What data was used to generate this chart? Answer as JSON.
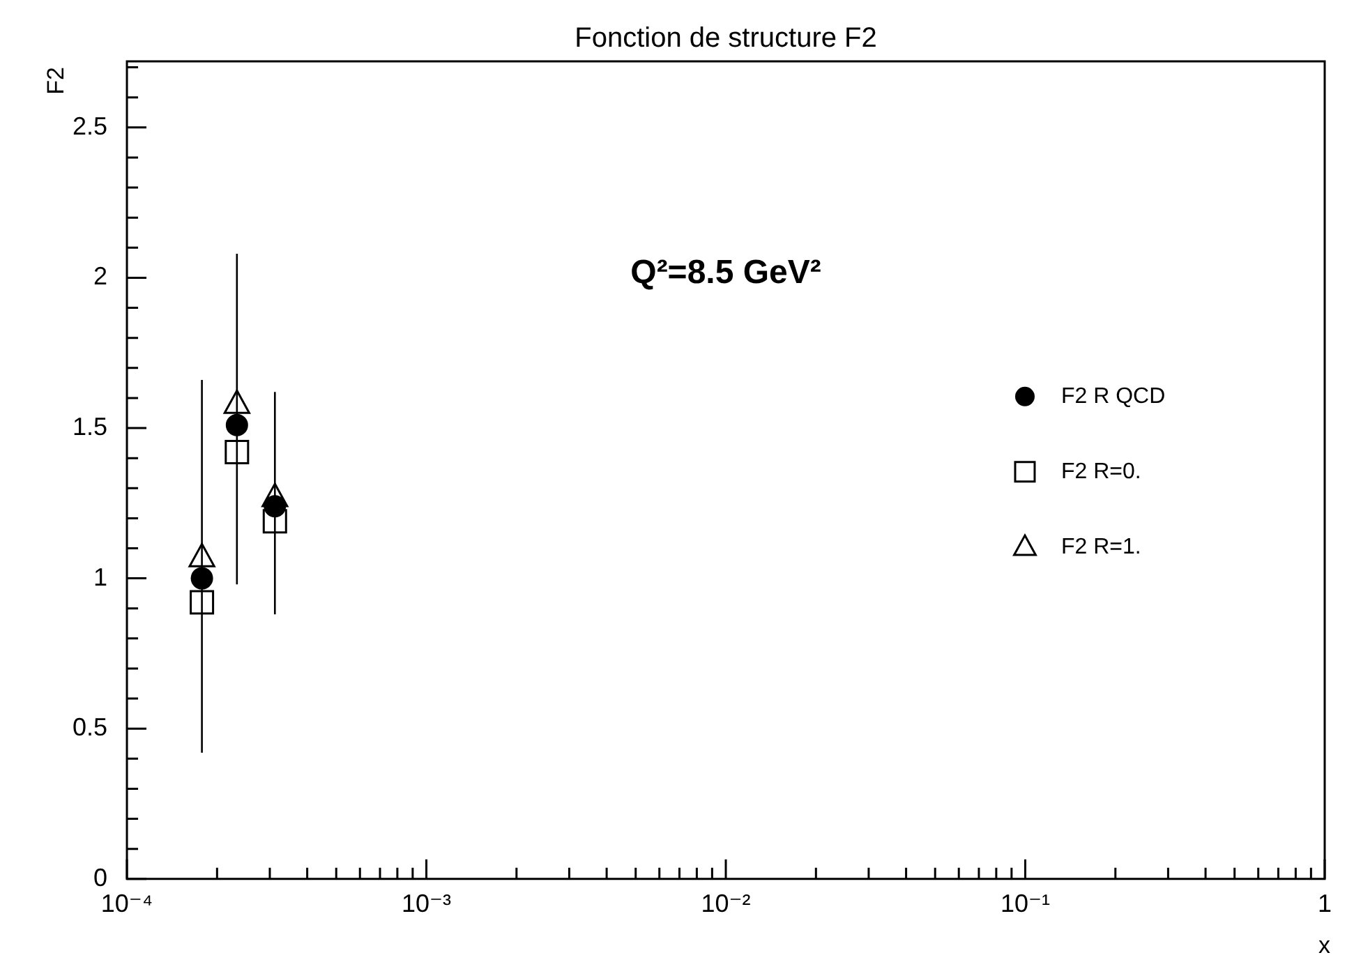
{
  "chart_data": {
    "type": "scatter",
    "title": "Fonction de structure F2",
    "xlabel": "x",
    "ylabel": "F2",
    "annotations": [
      "Q²=8.5 GeV²"
    ],
    "log": "x",
    "grid": false,
    "legend": "right",
    "xlim": [
      0.0001,
      1
    ],
    "ylim": [
      0,
      2.72
    ],
    "xticks": [
      {
        "value": 0.0001,
        "label": "10⁻⁴"
      },
      {
        "value": 0.0002,
        "label": null
      },
      {
        "value": 0.0003,
        "label": null
      },
      {
        "value": 0.0004,
        "label": null
      },
      {
        "value": 0.0005,
        "label": null
      },
      {
        "value": 0.0006,
        "label": null
      },
      {
        "value": 0.0007,
        "label": null
      },
      {
        "value": 0.0008,
        "label": null
      },
      {
        "value": 0.0009,
        "label": null
      },
      {
        "value": 0.001,
        "label": "10⁻³"
      },
      {
        "value": 0.002,
        "label": null
      },
      {
        "value": 0.003,
        "label": null
      },
      {
        "value": 0.004,
        "label": null
      },
      {
        "value": 0.005,
        "label": null
      },
      {
        "value": 0.006,
        "label": null
      },
      {
        "value": 0.007,
        "label": null
      },
      {
        "value": 0.008,
        "label": null
      },
      {
        "value": 0.009,
        "label": null
      },
      {
        "value": 0.01,
        "label": "10⁻²"
      },
      {
        "value": 0.02,
        "label": null
      },
      {
        "value": 0.03,
        "label": null
      },
      {
        "value": 0.04,
        "label": null
      },
      {
        "value": 0.05,
        "label": null
      },
      {
        "value": 0.06,
        "label": null
      },
      {
        "value": 0.07,
        "label": null
      },
      {
        "value": 0.08,
        "label": null
      },
      {
        "value": 0.09,
        "label": null
      },
      {
        "value": 0.1,
        "label": "10⁻¹"
      },
      {
        "value": 0.2,
        "label": null
      },
      {
        "value": 0.3,
        "label": null
      },
      {
        "value": 0.4,
        "label": null
      },
      {
        "value": 0.5,
        "label": null
      },
      {
        "value": 0.6,
        "label": null
      },
      {
        "value": 0.7,
        "label": null
      },
      {
        "value": 0.8,
        "label": null
      },
      {
        "value": 0.9,
        "label": null
      },
      1
    ],
    "yticks": [
      0,
      {
        "value": 0.1,
        "label": null
      },
      {
        "value": 0.2,
        "label": null
      },
      {
        "value": 0.3,
        "label": null
      },
      {
        "value": 0.4,
        "label": null
      },
      0.5,
      {
        "value": 0.6,
        "label": null
      },
      {
        "value": 0.7,
        "label": null
      },
      {
        "value": 0.8,
        "label": null
      },
      {
        "value": 0.9,
        "label": null
      },
      1,
      {
        "value": 1.1,
        "label": null
      },
      {
        "value": 1.2,
        "label": null
      },
      {
        "value": 1.3,
        "label": null
      },
      {
        "value": 1.4,
        "label": null
      },
      1.5,
      {
        "value": 1.6,
        "label": null
      },
      {
        "value": 1.7,
        "label": null
      },
      {
        "value": 1.8,
        "label": null
      },
      {
        "value": 1.9,
        "label": null
      },
      2,
      {
        "value": 2.1,
        "label": null
      },
      {
        "value": 2.2,
        "label": null
      },
      {
        "value": 2.3,
        "label": null
      },
      {
        "value": 2.4,
        "label": null
      },
      2.5,
      {
        "value": 2.6,
        "label": null
      },
      {
        "value": 2.7,
        "label": null
      }
    ],
    "x": [
      0.000178,
      0.000233,
      0.000312
    ],
    "series": [
      {
        "name": "F2 R QCD",
        "color": "#000000",
        "marker": "circle",
        "values": [
          1.0,
          1.51,
          1.24
        ],
        "errors": [
          [
            0.42,
            1.66
          ],
          [
            0.98,
            2.08
          ],
          [
            0.88,
            1.62
          ]
        ]
      },
      {
        "name": "F2 R=0.",
        "color": "#000000",
        "marker": "square",
        "values": [
          0.92,
          1.42,
          1.19
        ]
      },
      {
        "name": "F2 R=1.",
        "color": "#000000",
        "marker": "triangle",
        "values": [
          1.07,
          1.58,
          1.27
        ]
      }
    ]
  }
}
